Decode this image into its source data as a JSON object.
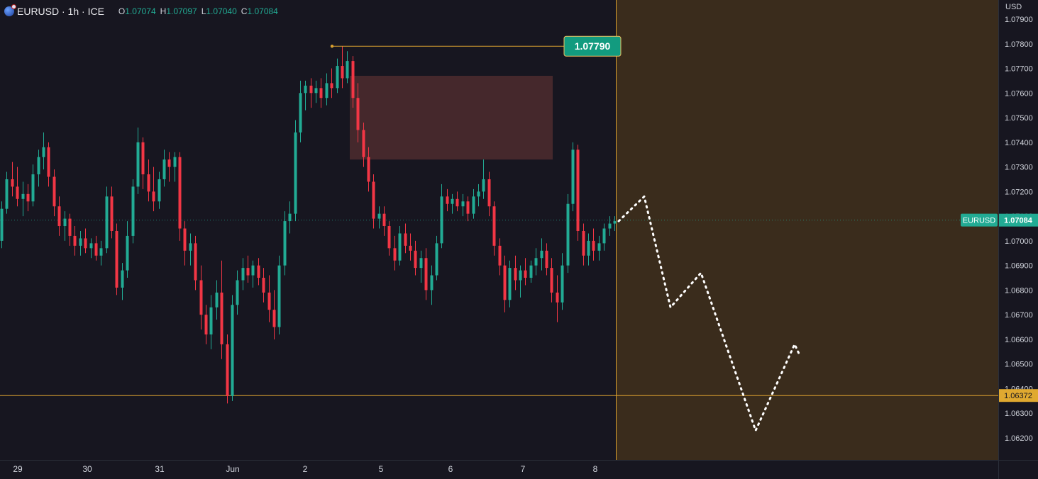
{
  "legend": {
    "symbol": "EURUSD · 1h · ICE",
    "open_key": "O",
    "open": "1.07074",
    "high_key": "H",
    "high": "1.07097",
    "low_key": "L",
    "low": "1.07040",
    "close_key": "C",
    "close": "1.07084"
  },
  "currency_label": "USD",
  "colors": {
    "background": "#171620",
    "up": "#22ab94",
    "down": "#f23645",
    "forecast_zone": "#3a2c1c",
    "level_line": "#d9a02f",
    "supply_zone": "#4a2a2e"
  },
  "chart_data": {
    "type": "candlestick",
    "symbol": "EURUSD",
    "interval": "1h",
    "ylim": [
      1.0614,
      1.0793
    ],
    "y_ticks": [
      "1.07900",
      "1.07800",
      "1.07700",
      "1.07600",
      "1.07500",
      "1.07400",
      "1.07300",
      "1.07200",
      "1.07100",
      "1.07000",
      "1.06900",
      "1.06800",
      "1.06700",
      "1.06600",
      "1.06500",
      "1.06400",
      "1.06300",
      "1.06200"
    ],
    "x_ticks": [
      "29",
      "30",
      "31",
      "Jun",
      "2",
      "5",
      "6",
      "7",
      "8"
    ],
    "candles": [
      [
        1.07,
        1.0716,
        1.0697,
        1.0713
      ],
      [
        1.0713,
        1.0728,
        1.0711,
        1.0725
      ],
      [
        1.0725,
        1.0732,
        1.0718,
        1.0722
      ],
      [
        1.0722,
        1.073,
        1.0714,
        1.0717
      ],
      [
        1.0717,
        1.0724,
        1.071,
        1.0719
      ],
      [
        1.0719,
        1.0723,
        1.0712,
        1.0716
      ],
      [
        1.0716,
        1.0731,
        1.0714,
        1.0727
      ],
      [
        1.0727,
        1.0737,
        1.0722,
        1.0734
      ],
      [
        1.0734,
        1.0744,
        1.0729,
        1.0738
      ],
      [
        1.0738,
        1.074,
        1.0722,
        1.0726
      ],
      [
        1.0726,
        1.0729,
        1.071,
        1.0714
      ],
      [
        1.0714,
        1.0718,
        1.0702,
        1.0706
      ],
      [
        1.0706,
        1.0712,
        1.07,
        1.0709
      ],
      [
        1.0709,
        1.0711,
        1.0698,
        1.0702
      ],
      [
        1.0702,
        1.0706,
        1.0694,
        1.0698
      ],
      [
        1.0698,
        1.0704,
        1.0694,
        1.0701
      ],
      [
        1.0701,
        1.0705,
        1.0695,
        1.0697
      ],
      [
        1.0697,
        1.0701,
        1.0693,
        1.0699
      ],
      [
        1.0699,
        1.0702,
        1.0692,
        1.0694
      ],
      [
        1.0694,
        1.07,
        1.069,
        1.0697
      ],
      [
        1.0697,
        1.0722,
        1.0695,
        1.0718
      ],
      [
        1.0718,
        1.0722,
        1.0701,
        1.0704
      ],
      [
        1.0704,
        1.0707,
        1.0678,
        1.0681
      ],
      [
        1.0681,
        1.0691,
        1.0676,
        1.0688
      ],
      [
        1.0688,
        1.0708,
        1.0685,
        1.0702
      ],
      [
        1.0702,
        1.0725,
        1.0699,
        1.0722
      ],
      [
        1.0722,
        1.0746,
        1.0719,
        1.074
      ],
      [
        1.074,
        1.0742,
        1.0721,
        1.0727
      ],
      [
        1.0727,
        1.0733,
        1.0716,
        1.072
      ],
      [
        1.072,
        1.073,
        1.0712,
        1.0716
      ],
      [
        1.0716,
        1.0728,
        1.0713,
        1.0725
      ],
      [
        1.0725,
        1.0737,
        1.0722,
        1.0733
      ],
      [
        1.0733,
        1.0736,
        1.0724,
        1.073
      ],
      [
        1.073,
        1.0736,
        1.0724,
        1.0734
      ],
      [
        1.0734,
        1.0736,
        1.07,
        1.0705
      ],
      [
        1.0705,
        1.0708,
        1.069,
        1.0696
      ],
      [
        1.0696,
        1.0703,
        1.069,
        1.0699
      ],
      [
        1.0699,
        1.0702,
        1.068,
        1.0684
      ],
      [
        1.0684,
        1.069,
        1.0664,
        1.067
      ],
      [
        1.067,
        1.0674,
        1.0658,
        1.0662
      ],
      [
        1.0662,
        1.0678,
        1.0656,
        1.0673
      ],
      [
        1.0673,
        1.0684,
        1.0668,
        1.0679
      ],
      [
        1.0679,
        1.0692,
        1.0652,
        1.0658
      ],
      [
        1.0658,
        1.0662,
        1.0634,
        1.0637
      ],
      [
        1.0637,
        1.0678,
        1.0635,
        1.0674
      ],
      [
        1.0674,
        1.0688,
        1.067,
        1.0684
      ],
      [
        1.0684,
        1.0693,
        1.068,
        1.0689
      ],
      [
        1.0689,
        1.0694,
        1.0683,
        1.0686
      ],
      [
        1.0686,
        1.0692,
        1.0681,
        1.069
      ],
      [
        1.069,
        1.0693,
        1.0682,
        1.0685
      ],
      [
        1.0685,
        1.0689,
        1.0675,
        1.0679
      ],
      [
        1.0679,
        1.0686,
        1.0667,
        1.0672
      ],
      [
        1.0672,
        1.068,
        1.066,
        1.0665
      ],
      [
        1.0665,
        1.0694,
        1.0662,
        1.069
      ],
      [
        1.069,
        1.0712,
        1.0686,
        1.0708
      ],
      [
        1.0708,
        1.0716,
        1.0703,
        1.0711
      ],
      [
        1.0711,
        1.0749,
        1.0708,
        1.0744
      ],
      [
        1.0744,
        1.0765,
        1.074,
        1.076
      ],
      [
        1.076,
        1.0765,
        1.0753,
        1.0763
      ],
      [
        1.0763,
        1.0766,
        1.0754,
        1.076
      ],
      [
        1.076,
        1.0765,
        1.0756,
        1.0762
      ],
      [
        1.0762,
        1.0766,
        1.0754,
        1.0758
      ],
      [
        1.0758,
        1.0768,
        1.0755,
        1.0764
      ],
      [
        1.0764,
        1.077,
        1.0758,
        1.0762
      ],
      [
        1.0762,
        1.0774,
        1.076,
        1.0771
      ],
      [
        1.0771,
        1.0779,
        1.0762,
        1.0766
      ],
      [
        1.0766,
        1.0777,
        1.0764,
        1.0773
      ],
      [
        1.0773,
        1.0775,
        1.0754,
        1.0758
      ],
      [
        1.0758,
        1.0764,
        1.074,
        1.0745
      ],
      [
        1.0745,
        1.0748,
        1.073,
        1.0734
      ],
      [
        1.0734,
        1.0738,
        1.072,
        1.0724
      ],
      [
        1.0724,
        1.0727,
        1.0705,
        1.0709
      ],
      [
        1.0709,
        1.0714,
        1.0705,
        1.0711
      ],
      [
        1.0711,
        1.0714,
        1.0702,
        1.0706
      ],
      [
        1.0706,
        1.0708,
        1.0694,
        1.0697
      ],
      [
        1.0697,
        1.0702,
        1.0688,
        1.0692
      ],
      [
        1.0692,
        1.0706,
        1.069,
        1.0703
      ],
      [
        1.0703,
        1.0707,
        1.0695,
        1.0698
      ],
      [
        1.0698,
        1.0703,
        1.0692,
        1.0696
      ],
      [
        1.0696,
        1.07,
        1.0686,
        1.0689
      ],
      [
        1.0689,
        1.0696,
        1.0683,
        1.0693
      ],
      [
        1.0693,
        1.0697,
        1.0676,
        1.068
      ],
      [
        1.068,
        1.069,
        1.0674,
        1.0686
      ],
      [
        1.0686,
        1.0702,
        1.0684,
        1.0699
      ],
      [
        1.0699,
        1.0723,
        1.0697,
        1.0718
      ],
      [
        1.0718,
        1.0721,
        1.0712,
        1.0715
      ],
      [
        1.0715,
        1.0719,
        1.0711,
        1.0717
      ],
      [
        1.0717,
        1.072,
        1.0712,
        1.0714
      ],
      [
        1.0714,
        1.0719,
        1.071,
        1.0716
      ],
      [
        1.0716,
        1.0718,
        1.0708,
        1.0711
      ],
      [
        1.0711,
        1.0721,
        1.0709,
        1.0718
      ],
      [
        1.0718,
        1.0723,
        1.0714,
        1.072
      ],
      [
        1.072,
        1.0733,
        1.0717,
        1.0725
      ],
      [
        1.0725,
        1.0728,
        1.071,
        1.0714
      ],
      [
        1.0714,
        1.0716,
        1.0694,
        1.0698
      ],
      [
        1.0698,
        1.0701,
        1.0686,
        1.069
      ],
      [
        1.069,
        1.0694,
        1.0671,
        1.0676
      ],
      [
        1.0676,
        1.0692,
        1.0673,
        1.0689
      ],
      [
        1.0689,
        1.0694,
        1.068,
        1.0684
      ],
      [
        1.0684,
        1.069,
        1.0677,
        1.0688
      ],
      [
        1.0688,
        1.0693,
        1.0682,
        1.0685
      ],
      [
        1.0685,
        1.0692,
        1.0683,
        1.069
      ],
      [
        1.069,
        1.0697,
        1.0686,
        1.0693
      ],
      [
        1.0693,
        1.0701,
        1.0688,
        1.0696
      ],
      [
        1.0696,
        1.0699,
        1.0686,
        1.0689
      ],
      [
        1.0689,
        1.0693,
        1.0675,
        1.0679
      ],
      [
        1.0679,
        1.0686,
        1.0667,
        1.0675
      ],
      [
        1.0675,
        1.0695,
        1.0672,
        1.069
      ],
      [
        1.069,
        1.0719,
        1.0687,
        1.0715
      ],
      [
        1.0715,
        1.074,
        1.0712,
        1.0737
      ],
      [
        1.0737,
        1.0739,
        1.07,
        1.0704
      ],
      [
        1.0704,
        1.0707,
        1.069,
        1.0694
      ],
      [
        1.0694,
        1.0703,
        1.069,
        1.07
      ],
      [
        1.07,
        1.0705,
        1.0692,
        1.0696
      ],
      [
        1.0696,
        1.0702,
        1.0692,
        1.0699
      ],
      [
        1.0699,
        1.0707,
        1.0696,
        1.0705
      ],
      [
        1.0705,
        1.071,
        1.0702,
        1.0707
      ],
      [
        1.0707,
        1.071,
        1.0704,
        1.0708
      ]
    ],
    "annotations": {
      "high_marker_price": 1.0779,
      "high_marker_label": "1.07790",
      "support_level": 1.06372,
      "support_label": "1.06372",
      "current_price": 1.07084,
      "current_label": "1.07084",
      "current_symbol": "EURUSD",
      "supply_zone": {
        "top": 1.0767,
        "bottom": 1.0733
      },
      "forecast_path": [
        1.0708,
        1.0718,
        1.0673,
        1.0687,
        1.0623,
        1.0658,
        1.0653
      ]
    }
  }
}
